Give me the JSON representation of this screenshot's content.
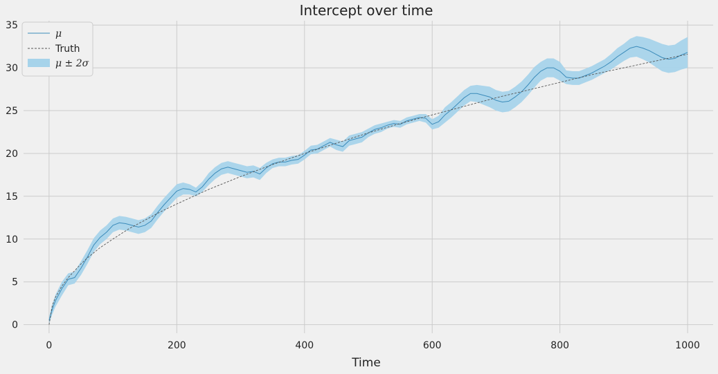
{
  "chart_data": {
    "type": "line",
    "title": "Intercept over time",
    "xlabel": "Time",
    "ylabel": "",
    "xlim": [
      -40,
      1040
    ],
    "ylim": [
      -1,
      35.5
    ],
    "xticks": [
      0,
      200,
      400,
      600,
      800,
      1000
    ],
    "yticks": [
      0,
      5,
      10,
      15,
      20,
      25,
      30,
      35
    ],
    "grid": true,
    "legend_position": "top-left",
    "colors": {
      "mean": "#3b8bba",
      "band": "#a6d3ea",
      "truth": "#555555",
      "background": "#f0f0f0",
      "grid": "#cbcbcb"
    },
    "series": [
      {
        "name": "μ",
        "style": "solid",
        "x": [
          0,
          5,
          10,
          20,
          30,
          40,
          50,
          60,
          70,
          80,
          90,
          100,
          110,
          120,
          130,
          140,
          150,
          160,
          170,
          180,
          190,
          200,
          210,
          220,
          230,
          240,
          250,
          260,
          270,
          280,
          290,
          300,
          310,
          320,
          330,
          340,
          350,
          360,
          370,
          380,
          390,
          400,
          410,
          420,
          430,
          440,
          450,
          460,
          470,
          480,
          490,
          500,
          510,
          520,
          530,
          540,
          550,
          560,
          570,
          580,
          590,
          600,
          610,
          620,
          630,
          640,
          650,
          660,
          670,
          680,
          690,
          700,
          710,
          720,
          730,
          740,
          750,
          760,
          770,
          780,
          790,
          800,
          810,
          820,
          830,
          840,
          850,
          860,
          870,
          880,
          890,
          900,
          910,
          920,
          930,
          940,
          950,
          960,
          970,
          980,
          990,
          1000
        ],
        "values": [
          0.5,
          1.8,
          2.8,
          4.2,
          5.3,
          5.5,
          6.6,
          7.9,
          9.3,
          10.2,
          10.8,
          11.6,
          11.9,
          11.8,
          11.6,
          11.4,
          11.6,
          12.1,
          13.1,
          14.0,
          14.8,
          15.6,
          15.9,
          15.8,
          15.5,
          16.1,
          17.0,
          17.7,
          18.2,
          18.4,
          18.2,
          18.0,
          17.8,
          17.9,
          17.6,
          18.3,
          18.8,
          19.0,
          19.0,
          19.2,
          19.3,
          19.8,
          20.4,
          20.5,
          20.9,
          21.3,
          21.0,
          20.8,
          21.5,
          21.7,
          21.9,
          22.4,
          22.8,
          23.0,
          23.3,
          23.5,
          23.4,
          23.8,
          24.0,
          24.2,
          24.1,
          23.4,
          23.7,
          24.5,
          25.1,
          25.8,
          26.5,
          27.0,
          27.0,
          26.8,
          26.6,
          26.2,
          26.0,
          26.1,
          26.6,
          27.2,
          28.0,
          28.9,
          29.6,
          30.0,
          30.0,
          29.6,
          28.9,
          28.8,
          28.8,
          29.1,
          29.4,
          29.8,
          30.2,
          30.7,
          31.3,
          31.8,
          32.3,
          32.5,
          32.3,
          32.0,
          31.6,
          31.2,
          31.0,
          31.1,
          31.5,
          31.8
        ]
      },
      {
        "name": "Truth",
        "style": "dashed",
        "x": [
          0,
          5,
          10,
          20,
          30,
          40,
          50,
          60,
          70,
          80,
          90,
          100,
          125,
          150,
          175,
          200,
          250,
          300,
          350,
          400,
          450,
          500,
          550,
          600,
          650,
          700,
          750,
          800,
          850,
          900,
          950,
          1000
        ],
        "values": [
          0.0,
          2.2,
          3.2,
          4.5,
          5.5,
          6.3,
          7.1,
          7.8,
          8.4,
          9.0,
          9.5,
          10.0,
          11.2,
          12.2,
          13.2,
          14.1,
          15.8,
          17.3,
          18.7,
          20.0,
          21.2,
          22.4,
          23.5,
          24.5,
          25.5,
          26.5,
          27.4,
          28.3,
          29.2,
          30.0,
          30.8,
          31.6
        ]
      },
      {
        "name": "μ ± 2σ",
        "style": "band",
        "x": [
          0,
          5,
          10,
          20,
          30,
          40,
          50,
          60,
          70,
          80,
          90,
          100,
          110,
          120,
          130,
          140,
          150,
          160,
          170,
          180,
          190,
          200,
          210,
          220,
          230,
          240,
          250,
          260,
          270,
          280,
          290,
          300,
          310,
          320,
          330,
          340,
          350,
          360,
          370,
          380,
          390,
          400,
          410,
          420,
          430,
          440,
          450,
          460,
          470,
          480,
          490,
          500,
          510,
          520,
          530,
          540,
          550,
          560,
          570,
          580,
          590,
          600,
          610,
          620,
          630,
          640,
          650,
          660,
          670,
          680,
          690,
          700,
          710,
          720,
          730,
          740,
          750,
          760,
          770,
          780,
          790,
          800,
          810,
          820,
          830,
          840,
          850,
          860,
          870,
          880,
          890,
          900,
          910,
          920,
          930,
          940,
          950,
          960,
          970,
          980,
          990,
          1000
        ],
        "lower": [
          0.1,
          1.2,
          2.1,
          3.4,
          4.6,
          4.8,
          5.8,
          7.1,
          8.5,
          9.4,
          10.0,
          10.8,
          11.1,
          11.0,
          10.8,
          10.6,
          10.8,
          11.3,
          12.3,
          13.2,
          14.0,
          14.8,
          15.2,
          15.2,
          15.0,
          15.5,
          16.3,
          17.0,
          17.5,
          17.7,
          17.5,
          17.3,
          17.1,
          17.2,
          16.9,
          17.7,
          18.3,
          18.5,
          18.5,
          18.7,
          18.8,
          19.3,
          19.9,
          20.0,
          20.4,
          20.8,
          20.4,
          20.2,
          20.9,
          21.1,
          21.3,
          21.9,
          22.3,
          22.5,
          22.9,
          23.1,
          23.0,
          23.4,
          23.6,
          23.8,
          23.6,
          22.8,
          23.0,
          23.6,
          24.2,
          24.9,
          25.6,
          26.1,
          26.0,
          25.7,
          25.4,
          25.0,
          24.8,
          24.9,
          25.4,
          26.0,
          26.8,
          27.7,
          28.5,
          28.9,
          28.9,
          28.5,
          28.1,
          28.0,
          28.0,
          28.3,
          28.6,
          29.0,
          29.4,
          29.8,
          30.3,
          30.8,
          31.2,
          31.3,
          31.0,
          30.6,
          30.1,
          29.6,
          29.4,
          29.5,
          29.8,
          30.0
        ],
        "upper": [
          0.9,
          2.4,
          3.5,
          5.0,
          6.0,
          6.2,
          7.4,
          8.7,
          10.1,
          11.0,
          11.6,
          12.4,
          12.7,
          12.6,
          12.4,
          12.2,
          12.4,
          12.9,
          13.9,
          14.8,
          15.6,
          16.4,
          16.6,
          16.4,
          16.0,
          16.7,
          17.7,
          18.4,
          18.9,
          19.1,
          18.9,
          18.7,
          18.5,
          18.6,
          18.3,
          18.9,
          19.3,
          19.5,
          19.5,
          19.7,
          19.8,
          20.3,
          20.9,
          21.0,
          21.4,
          21.8,
          21.6,
          21.4,
          22.1,
          22.3,
          22.5,
          22.9,
          23.3,
          23.5,
          23.7,
          23.9,
          23.8,
          24.2,
          24.4,
          24.6,
          24.6,
          24.0,
          24.4,
          25.4,
          26.0,
          26.7,
          27.4,
          27.9,
          28.0,
          27.9,
          27.8,
          27.4,
          27.2,
          27.3,
          27.8,
          28.4,
          29.2,
          30.1,
          30.7,
          31.1,
          31.1,
          30.7,
          29.7,
          29.6,
          29.6,
          29.9,
          30.2,
          30.6,
          31.0,
          31.6,
          32.3,
          32.8,
          33.4,
          33.7,
          33.6,
          33.4,
          33.1,
          32.8,
          32.6,
          32.7,
          33.2,
          33.6
        ]
      }
    ]
  }
}
